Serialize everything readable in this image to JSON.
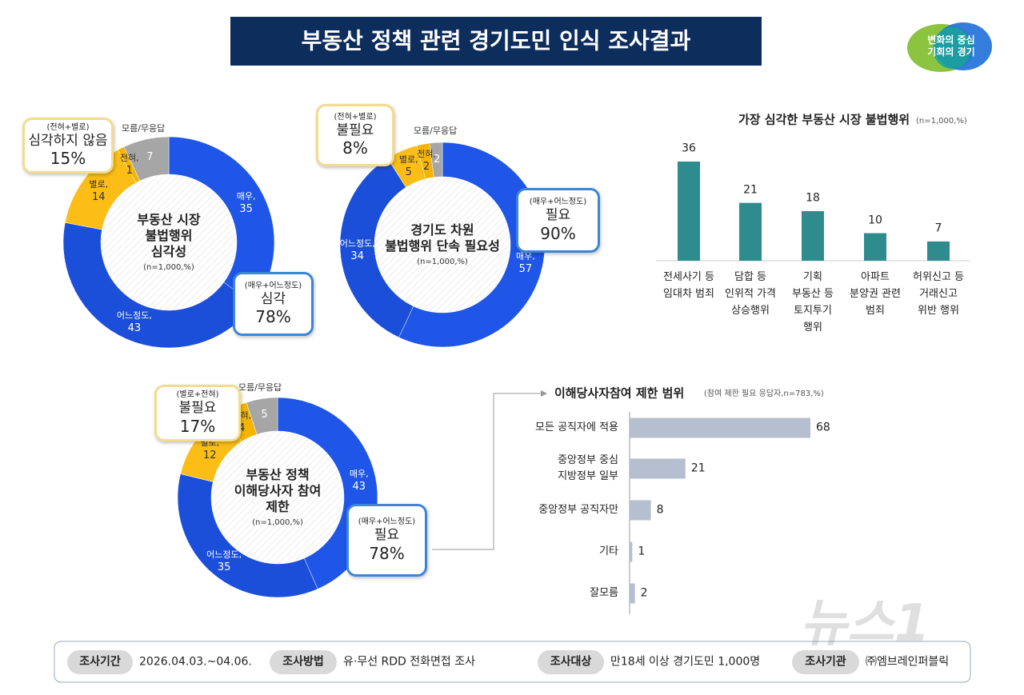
{
  "title": "부동산 정책 관련 경기도민 인식 조사결과",
  "logo": "변화의 중심\n기회의 경기",
  "watermark": "뉴스1",
  "chart_data": [
    {
      "type": "donut",
      "center_title": "부동산 시장\n불법행위\n심각성",
      "note": "(n=1,000,%)",
      "categories": [
        "매우,",
        "어느정도,",
        "별로,",
        "전혀,",
        "모름/무응답"
      ],
      "values": [
        35,
        43,
        14,
        1,
        7
      ],
      "colors": [
        "#1f56e8",
        "#1c4fd9",
        "#fbbd16",
        "#f5b400",
        "#a6a6a6"
      ],
      "callouts": [
        {
          "group": "(전혀+별로)",
          "label": "심각하지 않음",
          "value": "15%"
        },
        {
          "group": "(매우+어느정도)",
          "label": "심각",
          "value": "78%"
        }
      ]
    },
    {
      "type": "donut",
      "center_title": "경기도 차원\n불법행위 단속 필요성",
      "note": "(n=1,000,%)",
      "categories": [
        "매우,",
        "어느정도,",
        "별로,",
        "전혀,",
        "모름/무응답"
      ],
      "values": [
        57,
        34,
        5,
        2,
        2
      ],
      "colors": [
        "#1f56e8",
        "#1c4fd9",
        "#fbbd16",
        "#f5b400",
        "#a6a6a6"
      ],
      "callouts": [
        {
          "group": "(전혀+별로)",
          "label": "불필요",
          "value": "8%"
        },
        {
          "group": "(매우+어느정도)",
          "label": "필요",
          "value": "90%"
        }
      ]
    },
    {
      "type": "donut",
      "center_title": "부동산 정책\n이해당사자 참여\n제한",
      "note": "(n=1,000,%)",
      "categories": [
        "매우,",
        "어느정도,",
        "별로,",
        "전혀,",
        "모름/무응답"
      ],
      "values": [
        43,
        35,
        12,
        4,
        5
      ],
      "colors": [
        "#1f56e8",
        "#1c4fd9",
        "#fbbd16",
        "#f5b400",
        "#a6a6a6"
      ],
      "callouts": [
        {
          "group": "(별로+전혀)",
          "label": "불필요",
          "value": "17%"
        },
        {
          "group": "(매우+어느정도)",
          "label": "필요",
          "value": "78%"
        }
      ]
    },
    {
      "type": "bar",
      "title": "가장 심각한 부동산 시장 불법행위",
      "subtitle": "(n=1,000,%)",
      "categories": [
        "전세사기 등\n임대차 범죄",
        "담합 등\n인위적 가격\n상승행위",
        "기획\n부동산 등\n토지투기\n행위",
        "아파트\n분양권 관련\n범죄",
        "허위신고 등\n거래신고\n위반 행위"
      ],
      "values": [
        36,
        21,
        18,
        10,
        7
      ],
      "color": "#2e8c8f"
    },
    {
      "type": "hbar",
      "title": "이해당사자참여 제한 범위",
      "subtitle": "(참여 제한 필요 응답자,n=783,%)",
      "categories": [
        "모든 공직자에 적용",
        "중앙정부 중심\n지방정부 일부",
        "중앙정부 공직자만",
        "기타",
        "잘모름"
      ],
      "values": [
        68,
        21,
        8,
        1,
        2
      ],
      "color": "#b6bfcf"
    }
  ],
  "footer": [
    {
      "label": "조사기간",
      "text": "2026.04.03.~04.06."
    },
    {
      "label": "조사방법",
      "text": "유·무선 RDD 전화면접 조사"
    },
    {
      "label": "조사대상",
      "text": "만18세 이상 경기도민 1,000명"
    },
    {
      "label": "조사기관",
      "text": "㈜엠브레인퍼블릭"
    }
  ]
}
